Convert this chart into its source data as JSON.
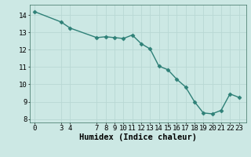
{
  "x": [
    0,
    3,
    4,
    7,
    8,
    9,
    10,
    11,
    12,
    13,
    14,
    15,
    16,
    17,
    18,
    19,
    20,
    21,
    22,
    23
  ],
  "y": [
    14.2,
    13.6,
    13.25,
    12.7,
    12.75,
    12.7,
    12.65,
    12.85,
    12.35,
    12.05,
    11.05,
    10.85,
    10.3,
    9.85,
    9.0,
    8.35,
    8.3,
    8.5,
    9.45,
    9.25
  ],
  "xticks": [
    0,
    3,
    4,
    7,
    8,
    9,
    10,
    11,
    12,
    13,
    14,
    15,
    16,
    17,
    18,
    19,
    20,
    21,
    22,
    23
  ],
  "yticks": [
    8,
    9,
    10,
    11,
    12,
    13,
    14
  ],
  "ylim": [
    7.8,
    14.6
  ],
  "xlim": [
    -0.5,
    23.8
  ],
  "xlabel": "Humidex (Indice chaleur)",
  "line_color": "#2e8077",
  "marker_color": "#2e8077",
  "bg_color": "#cce8e4",
  "grid_color": "#b8d8d4",
  "tick_label_fontsize": 6.5,
  "xlabel_fontsize": 7.5
}
